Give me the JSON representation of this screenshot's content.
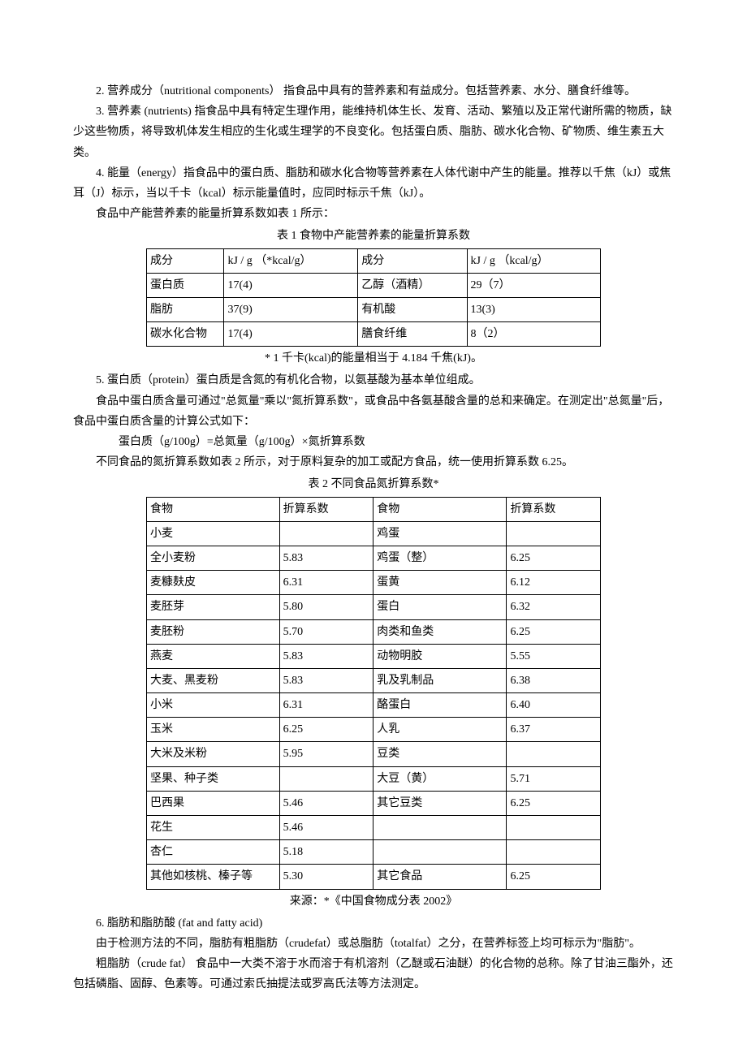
{
  "para1": "2. 营养成分（nutritional components） 指食品中具有的营养素和有益成分。包括营养素、水分、膳食纤维等。",
  "para2": "3. 营养素 (nutrients) 指食品中具有特定生理作用，能维持机体生长、发育、活动、繁殖以及正常代谢所需的物质，缺少这些物质，将导致机体发生相应的生化或生理学的不良变化。包括蛋白质、脂肪、碳水化合物、矿物质、维生素五大类。",
  "para3": "4. 能量（energy）指食品中的蛋白质、脂肪和碳水化合物等营养素在人体代谢中产生的能量。推荐以千焦（kJ）或焦耳（J）标示，当以千卡（kcal）标示能量值时，应同时标示千焦（kJ）。",
  "para4": "食品中产能营养素的能量折算系数如表 1 所示：",
  "table1_caption": "表 1 食物中产能营养素的能量折算系数",
  "table1": {
    "headers": [
      "成分",
      "kJ / g （*kcal/g）",
      "成分",
      "kJ / g （kcal/g）"
    ],
    "rows": [
      [
        "蛋白质",
        "17(4)",
        "乙醇（酒精）",
        "29（7）"
      ],
      [
        "脂肪",
        "37(9)",
        "有机酸",
        "13(3)"
      ],
      [
        "碳水化合物",
        "17(4)",
        "膳食纤维",
        "8（2）"
      ]
    ]
  },
  "table1_footnote": "* 1 千卡(kcal)的能量相当于 4.184 千焦(kJ)。",
  "para5": "5. 蛋白质（protein）蛋白质是含氮的有机化合物，以氨基酸为基本单位组成。",
  "para6": "食品中蛋白质含量可通过\"总氮量\"乘以\"氮折算系数\"，或食品中各氨基酸含量的总和来确定。在测定出\"总氮量\"后，食品中蛋白质含量的计算公式如下：",
  "formula": "蛋白质（g/100g）=总氮量（g/100g）×氮折算系数",
  "para7": "不同食品的氮折算系数如表 2 所示，对于原料复杂的加工或配方食品，统一使用折算系数 6.25。",
  "table2_caption": "表 2 不同食品氮折算系数*",
  "table2": {
    "headers": [
      "食物",
      "折算系数",
      "食物",
      "折算系数"
    ],
    "rows": [
      [
        "小麦",
        "",
        "鸡蛋",
        ""
      ],
      [
        "全小麦粉",
        "5.83",
        "鸡蛋（整）",
        "6.25"
      ],
      [
        "麦糠麸皮",
        "6.31",
        "蛋黄",
        "6.12"
      ],
      [
        "麦胚芽",
        "5.80",
        "蛋白",
        "6.32"
      ],
      [
        "麦胚粉",
        "5.70",
        "肉类和鱼类",
        "6.25"
      ],
      [
        "燕麦",
        "5.83",
        "动物明胶",
        "5.55"
      ],
      [
        "大麦、黑麦粉",
        "5.83",
        "乳及乳制品",
        "6.38"
      ],
      [
        "小米",
        "6.31",
        "酪蛋白",
        "6.40"
      ],
      [
        "玉米",
        "6.25",
        "人乳",
        "6.37"
      ],
      [
        "大米及米粉",
        "5.95",
        "豆类",
        ""
      ],
      [
        "坚果、种子类",
        "",
        "大豆（黄）",
        "5.71"
      ],
      [
        "巴西果",
        "5.46",
        "其它豆类",
        "6.25"
      ],
      [
        "花生",
        "5.46",
        "",
        ""
      ],
      [
        "杏仁",
        "5.18",
        "",
        ""
      ],
      [
        "其他如核桃、榛子等",
        "5.30",
        "其它食品",
        "6.25"
      ]
    ]
  },
  "table2_footnote": "来源：*《中国食物成分表 2002》",
  "para8": "6. 脂肪和脂肪酸 (fat and fatty acid)",
  "para9": "由于检测方法的不同，脂肪有粗脂肪（crudefat）或总脂肪（totalfat）之分，在营养标签上均可标示为\"脂肪\"。",
  "para10": "粗脂肪（crude fat） 食品中一大类不溶于水而溶于有机溶剂（乙醚或石油醚）的化合物的总称。除了甘油三酯外，还包括磷脂、固醇、色素等。可通过索氏抽提法或罗高氏法等方法测定。"
}
